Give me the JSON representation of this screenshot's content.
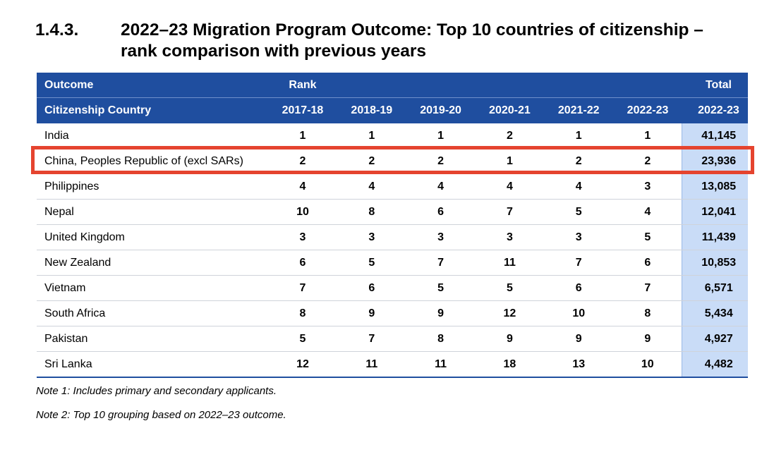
{
  "heading": {
    "number": "1.4.3.",
    "title": "2022–23 Migration Program Outcome: Top 10 countries of citizenship – rank comparison with previous years"
  },
  "table": {
    "header1": {
      "outcome": "Outcome",
      "rank": "Rank",
      "total": "Total"
    },
    "header2": {
      "country": "Citizenship Country",
      "years": [
        "2017-18",
        "2018-19",
        "2019-20",
        "2020-21",
        "2021-22",
        "2022-23"
      ],
      "total_year": "2022-23"
    },
    "rows": [
      {
        "country": "India",
        "ranks": [
          "1",
          "1",
          "1",
          "2",
          "1",
          "1"
        ],
        "total": "41,145"
      },
      {
        "country": "China, Peoples Republic of (excl SARs)",
        "ranks": [
          "2",
          "2",
          "2",
          "1",
          "2",
          "2"
        ],
        "total": "23,936"
      },
      {
        "country": "Philippines",
        "ranks": [
          "4",
          "4",
          "4",
          "4",
          "4",
          "3"
        ],
        "total": "13,085"
      },
      {
        "country": "Nepal",
        "ranks": [
          "10",
          "8",
          "6",
          "7",
          "5",
          "4"
        ],
        "total": "12,041"
      },
      {
        "country": "United Kingdom",
        "ranks": [
          "3",
          "3",
          "3",
          "3",
          "3",
          "5"
        ],
        "total": "11,439"
      },
      {
        "country": "New Zealand",
        "ranks": [
          "6",
          "5",
          "7",
          "11",
          "7",
          "6"
        ],
        "total": "10,853"
      },
      {
        "country": "Vietnam",
        "ranks": [
          "7",
          "6",
          "5",
          "5",
          "6",
          "7"
        ],
        "total": "6,571"
      },
      {
        "country": "South Africa",
        "ranks": [
          "8",
          "9",
          "9",
          "12",
          "10",
          "8"
        ],
        "total": "5,434"
      },
      {
        "country": "Pakistan",
        "ranks": [
          "5",
          "7",
          "8",
          "9",
          "9",
          "9"
        ],
        "total": "4,927"
      },
      {
        "country": "Sri Lanka",
        "ranks": [
          "12",
          "11",
          "11",
          "18",
          "13",
          "10"
        ],
        "total": "4,482"
      }
    ],
    "highlighted_row": "China, Peoples Republic of (excl SARs)"
  },
  "notes": [
    "Note 1: Includes primary and secondary applicants.",
    "Note 2: Top 10 grouping based on 2022–23 outcome."
  ],
  "colors": {
    "header_bg": "#1f4e9f",
    "total_column_bg": "#c9dcf7",
    "highlight_border": "#e5442f"
  }
}
